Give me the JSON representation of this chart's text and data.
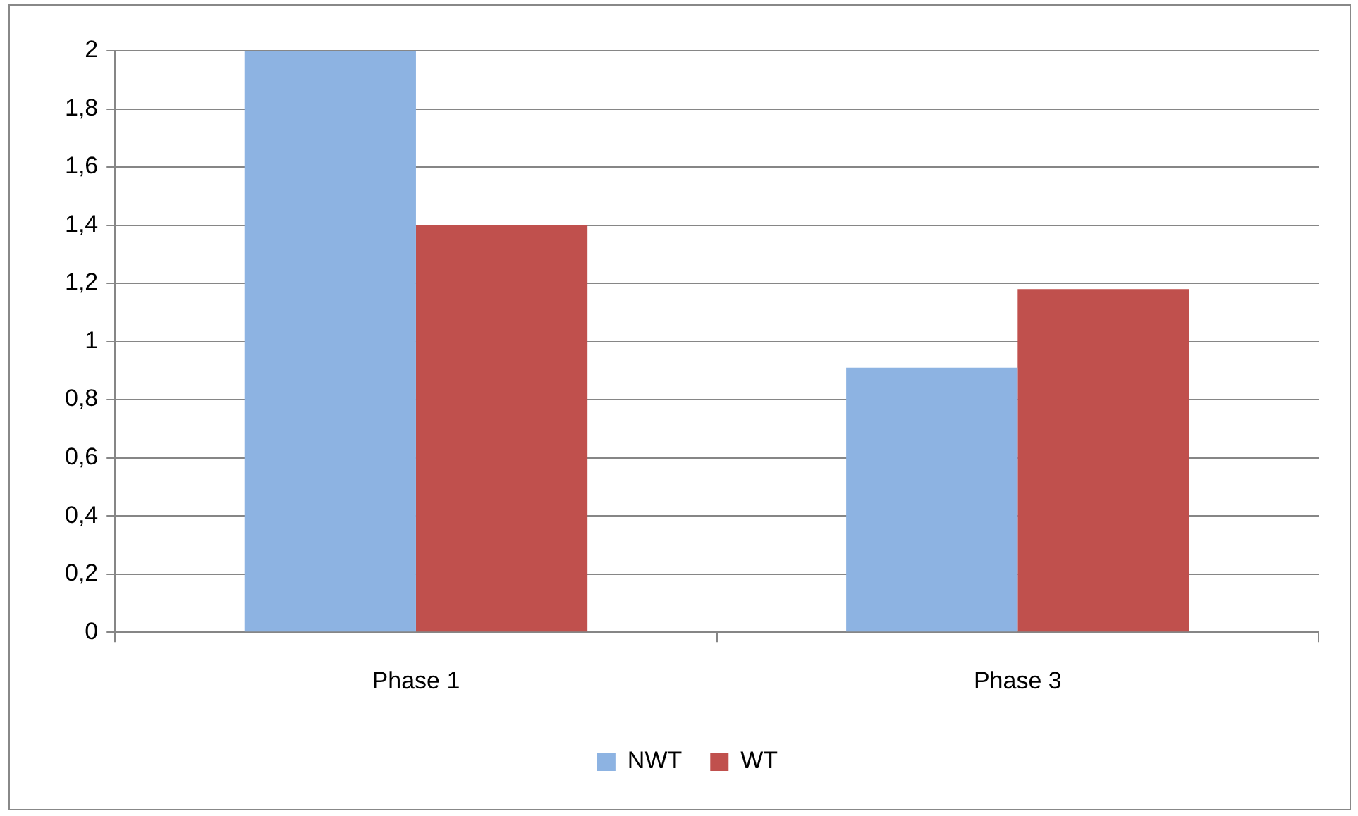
{
  "chart_data": {
    "type": "bar",
    "categories": [
      "Phase 1",
      "Phase 3"
    ],
    "series": [
      {
        "name": "NWT",
        "color": "#8db3e2",
        "values": [
          2,
          0.91
        ]
      },
      {
        "name": "WT",
        "color": "#c0504d",
        "values": [
          1.4,
          1.18
        ]
      }
    ],
    "ylim": [
      0,
      2
    ],
    "yticks": [
      0,
      {
        "value": 0.2,
        "label": "0,2"
      },
      {
        "value": 0.4,
        "label": "0,4"
      },
      {
        "value": 0.6,
        "label": "0,6"
      },
      {
        "value": 0.8,
        "label": "0,8"
      },
      1,
      {
        "value": 1.2,
        "label": "1,2"
      },
      {
        "value": 1.4,
        "label": "1,4"
      },
      {
        "value": 1.6,
        "label": "1,6"
      },
      {
        "value": 1.8,
        "label": "1,8"
      },
      2
    ],
    "grid": "y",
    "legend": "bottom"
  }
}
